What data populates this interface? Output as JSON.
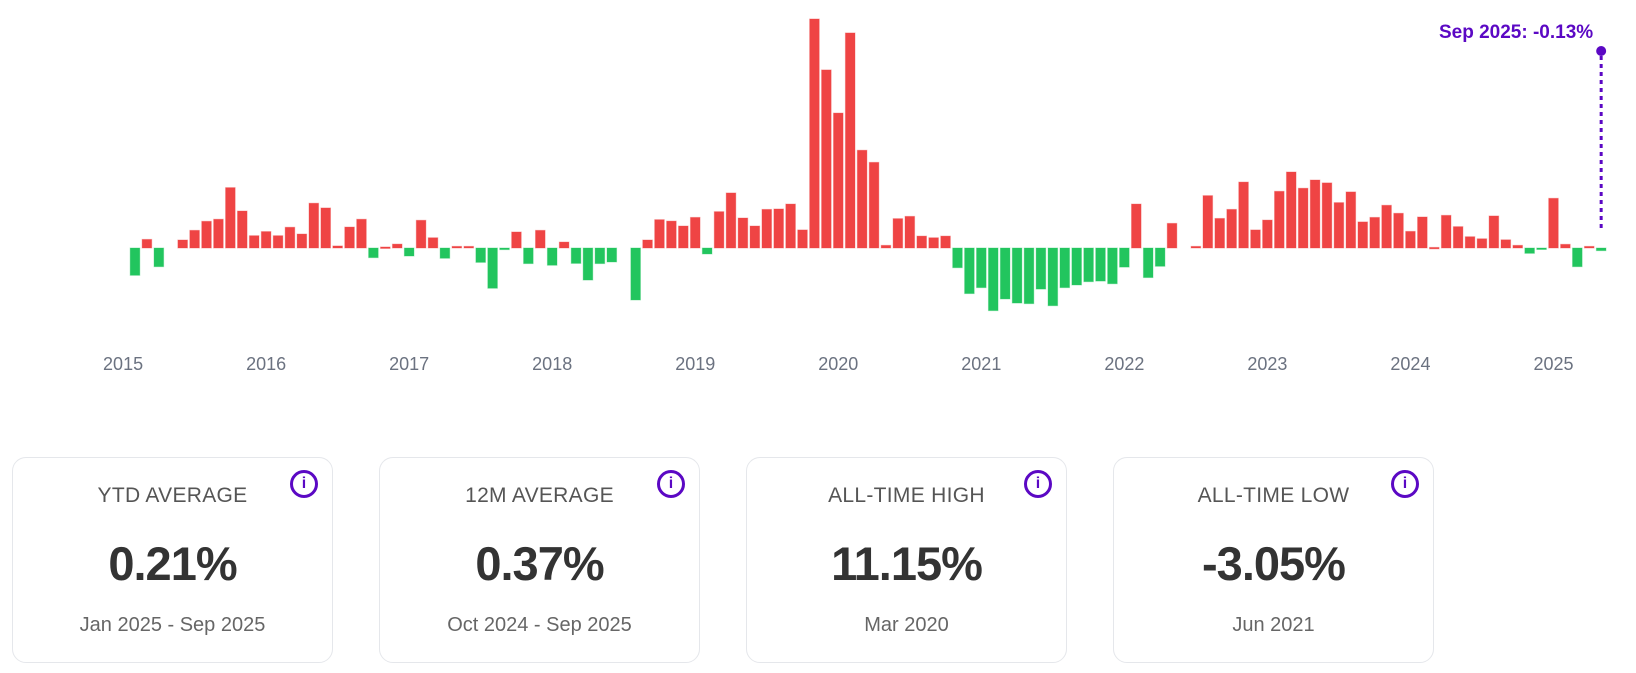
{
  "chart_data": {
    "type": "bar",
    "x_start": "2015-06",
    "interval": "month",
    "x_tick_labels": [
      "2015",
      "2016",
      "2017",
      "2018",
      "2019",
      "2020",
      "2021",
      "2022",
      "2023",
      "2024",
      "2025"
    ],
    "values": [
      -1.33,
      0.42,
      -0.91,
      0,
      0.39,
      0.86,
      1.3,
      1.4,
      2.94,
      1.8,
      0.6,
      0.8,
      0.6,
      1.01,
      0.68,
      2.18,
      1.95,
      0.1,
      1.02,
      1.4,
      -0.47,
      0.05,
      0.19,
      -0.39,
      1.35,
      0.5,
      -0.5,
      0.08,
      0.08,
      -0.7,
      -1.96,
      -0.08,
      0.78,
      -0.76,
      0.86,
      -0.84,
      0.29,
      -0.75,
      -1.56,
      -0.76,
      -0.68,
      0,
      -2.53,
      0.39,
      1.38,
      1.31,
      1.07,
      1.49,
      -0.29,
      1.77,
      2.68,
      1.46,
      1.07,
      1.88,
      1.9,
      2.14,
      0.88,
      11.15,
      8.67,
      6.57,
      10.47,
      4.76,
      4.17,
      0.13,
      1.43,
      1.54,
      0.58,
      0.5,
      0.58,
      -0.96,
      -2.22,
      -1.93,
      -3.05,
      -2.48,
      -2.68,
      -2.71,
      -2.0,
      -2.81,
      -1.93,
      -1.8,
      -1.64,
      -1.61,
      -1.74,
      -0.93,
      2.14,
      -1.44,
      -0.89,
      1.2,
      0,
      0.08,
      2.55,
      1.44,
      1.88,
      3.21,
      0.88,
      1.36,
      2.76,
      3.7,
      2.91,
      3.31,
      3.17,
      2.21,
      2.73,
      1.27,
      1.49,
      2.08,
      1.69,
      0.81,
      1.51,
      0.03,
      1.59,
      1.04,
      0.55,
      0.45,
      1.56,
      0.4,
      0.13,
      -0.26,
      -0.03,
      2.42,
      0.18,
      -0.91,
      0.08,
      -0.13
    ],
    "unit": "%",
    "ylim": [
      -3.05,
      11.15
    ],
    "grid": false,
    "colors": {
      "positive": "#ef4444",
      "negative": "#22c55e",
      "annotation": "#5b08c4"
    },
    "annotation": "Sep 2025: -0.13%"
  },
  "cards": [
    {
      "title": "YTD AVERAGE",
      "value": "0.21%",
      "period": "Jan 2025 - Sep 2025",
      "info_icon": "i"
    },
    {
      "title": "12M AVERAGE",
      "value": "0.37%",
      "period": "Oct 2024 - Sep 2025",
      "info_icon": "i"
    },
    {
      "title": "ALL-TIME HIGH",
      "value": "11.15%",
      "period": "Mar 2020",
      "info_icon": "i"
    },
    {
      "title": "ALL-TIME LOW",
      "value": "-3.05%",
      "period": "Jun 2021",
      "info_icon": "i"
    }
  ]
}
